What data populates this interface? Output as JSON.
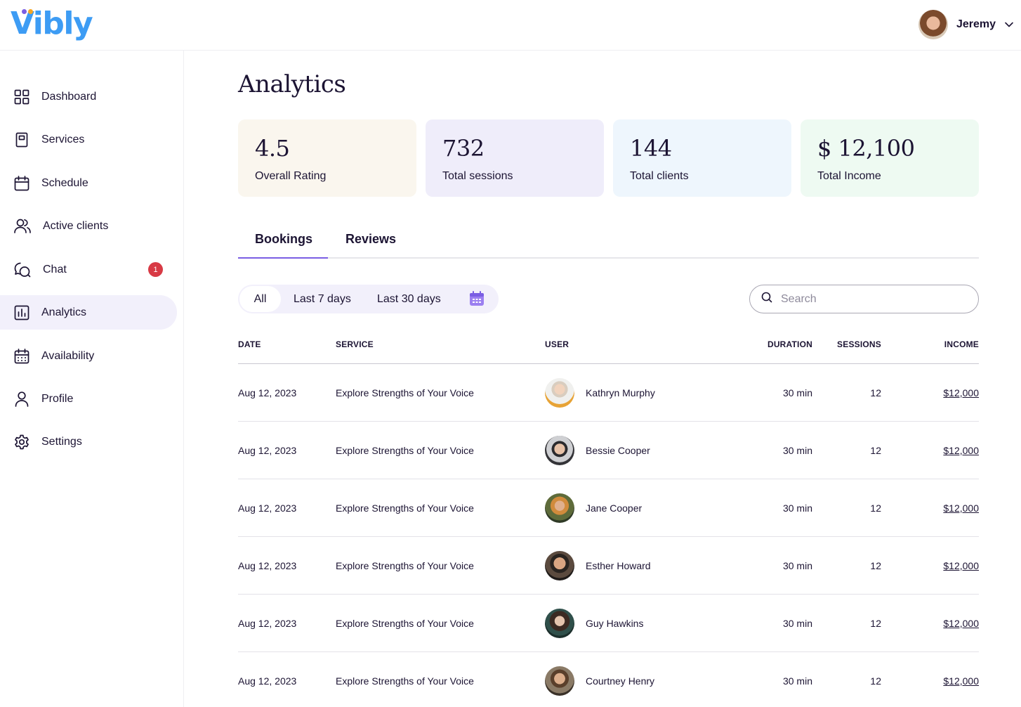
{
  "app": {
    "logo_text": "Vibly",
    "brand_color": "#3d9cf4",
    "accent_color": "#7a5ee3"
  },
  "header": {
    "user_name": "Jeremy",
    "user_avatar": "user-avatar",
    "menu_icon": "chevron-down-icon"
  },
  "sidebar": {
    "items": [
      {
        "label": "Dashboard",
        "icon": "grid-icon"
      },
      {
        "label": "Services",
        "icon": "document-icon"
      },
      {
        "label": "Schedule",
        "icon": "calendar-icon"
      },
      {
        "label": "Active clients",
        "icon": "users-icon"
      },
      {
        "label": "Chat",
        "icon": "chat-icon",
        "badge": "1"
      },
      {
        "label": "Analytics",
        "icon": "chart-icon",
        "active": true
      },
      {
        "label": "Availability",
        "icon": "calendar-grid-icon"
      },
      {
        "label": "Profile",
        "icon": "user-icon"
      },
      {
        "label": "Settings",
        "icon": "gear-icon"
      }
    ]
  },
  "page": {
    "title": "Analytics"
  },
  "stats": [
    {
      "value": "4.5",
      "label": "Overall Rating",
      "bg": "#faf6ee"
    },
    {
      "value": "732",
      "label": "Total sessions",
      "bg": "#efedfa"
    },
    {
      "value": "144",
      "label": "Total clients",
      "bg": "#eef6fd"
    },
    {
      "value": "$ 12,100",
      "label": "Total Income",
      "bg": "#eefaf2"
    }
  ],
  "tabs": [
    {
      "label": "Bookings",
      "active": true
    },
    {
      "label": "Reviews",
      "active": false
    }
  ],
  "filters": {
    "options": [
      "All",
      "Last 7 days",
      "Last 30 days"
    ],
    "selected": "All",
    "calendar_icon": "calendar-icon"
  },
  "search": {
    "placeholder": "Search",
    "value": ""
  },
  "table": {
    "columns": [
      "DATE",
      "SERVICE",
      "USER",
      "DURATION",
      "SESSIONS",
      "INCOME"
    ],
    "rows": [
      {
        "date": "Aug 12, 2023",
        "service": "Explore Strengths of Your Voice",
        "user": "Kathryn Murphy",
        "duration": "30 min",
        "sessions": "12",
        "income": "$12,000"
      },
      {
        "date": "Aug 12, 2023",
        "service": "Explore Strengths of Your Voice",
        "user": "Bessie Cooper",
        "duration": "30 min",
        "sessions": "12",
        "income": "$12,000"
      },
      {
        "date": "Aug 12, 2023",
        "service": "Explore Strengths of Your Voice",
        "user": "Jane Cooper",
        "duration": "30 min",
        "sessions": "12",
        "income": "$12,000"
      },
      {
        "date": "Aug 12, 2023",
        "service": "Explore Strengths of Your Voice",
        "user": "Esther Howard",
        "duration": "30 min",
        "sessions": "12",
        "income": "$12,000"
      },
      {
        "date": "Aug 12, 2023",
        "service": "Explore Strengths of Your Voice",
        "user": "Guy Hawkins",
        "duration": "30 min",
        "sessions": "12",
        "income": "$12,000"
      },
      {
        "date": "Aug 12, 2023",
        "service": "Explore Strengths of Your Voice",
        "user": "Courtney Henry",
        "duration": "30 min",
        "sessions": "12",
        "income": "$12,000"
      }
    ]
  }
}
